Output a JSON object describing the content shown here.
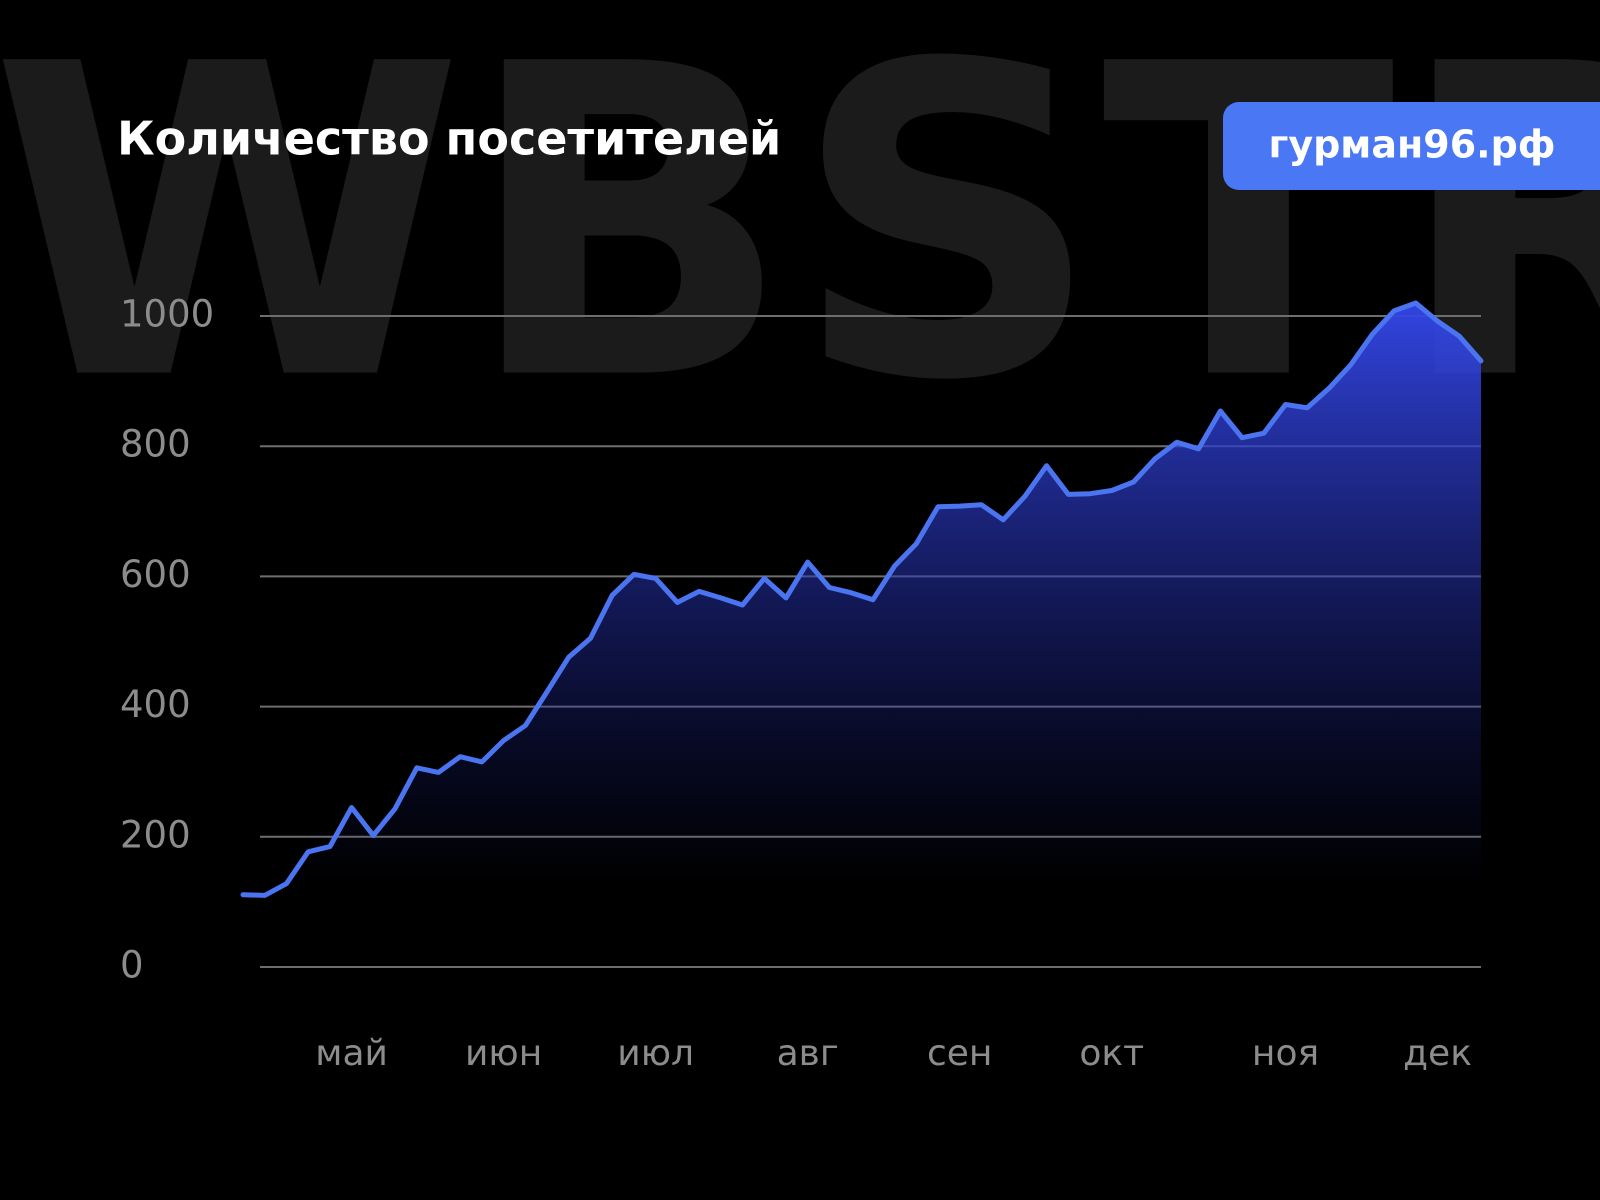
{
  "chart_data": {
    "type": "area",
    "title": "Количество посетителей",
    "badge": "гурман96.рф",
    "watermark": "WBSTR",
    "categories": [
      null,
      null,
      null,
      null,
      null,
      "май",
      null,
      null,
      null,
      null,
      null,
      null,
      "июн",
      null,
      null,
      null,
      null,
      null,
      null,
      "июл",
      null,
      null,
      null,
      null,
      null,
      null,
      "авг",
      null,
      null,
      null,
      null,
      null,
      null,
      "сен",
      null,
      null,
      null,
      null,
      null,
      null,
      "окт",
      null,
      null,
      null,
      null,
      null,
      null,
      null,
      "ноя",
      null,
      null,
      null,
      null,
      null,
      null,
      "дек",
      null,
      null
    ],
    "values": [
      111,
      110,
      128,
      177,
      185,
      245,
      202,
      243,
      306,
      299,
      323,
      315,
      348,
      371,
      423,
      476,
      505,
      571,
      603,
      597,
      560,
      577,
      567,
      556,
      597,
      567,
      622,
      583,
      575,
      564,
      616,
      650,
      707,
      708,
      710,
      687,
      723,
      770,
      726,
      727,
      732,
      745,
      781,
      806,
      796,
      854,
      813,
      820,
      864,
      859,
      889,
      925,
      972,
      1008,
      1020,
      992,
      969,
      931
    ],
    "color": "#4a74f0",
    "ylim": [
      0,
      1000
    ],
    "yticks": [
      0,
      200,
      400,
      600,
      800,
      1000
    ],
    "grid": true
  }
}
